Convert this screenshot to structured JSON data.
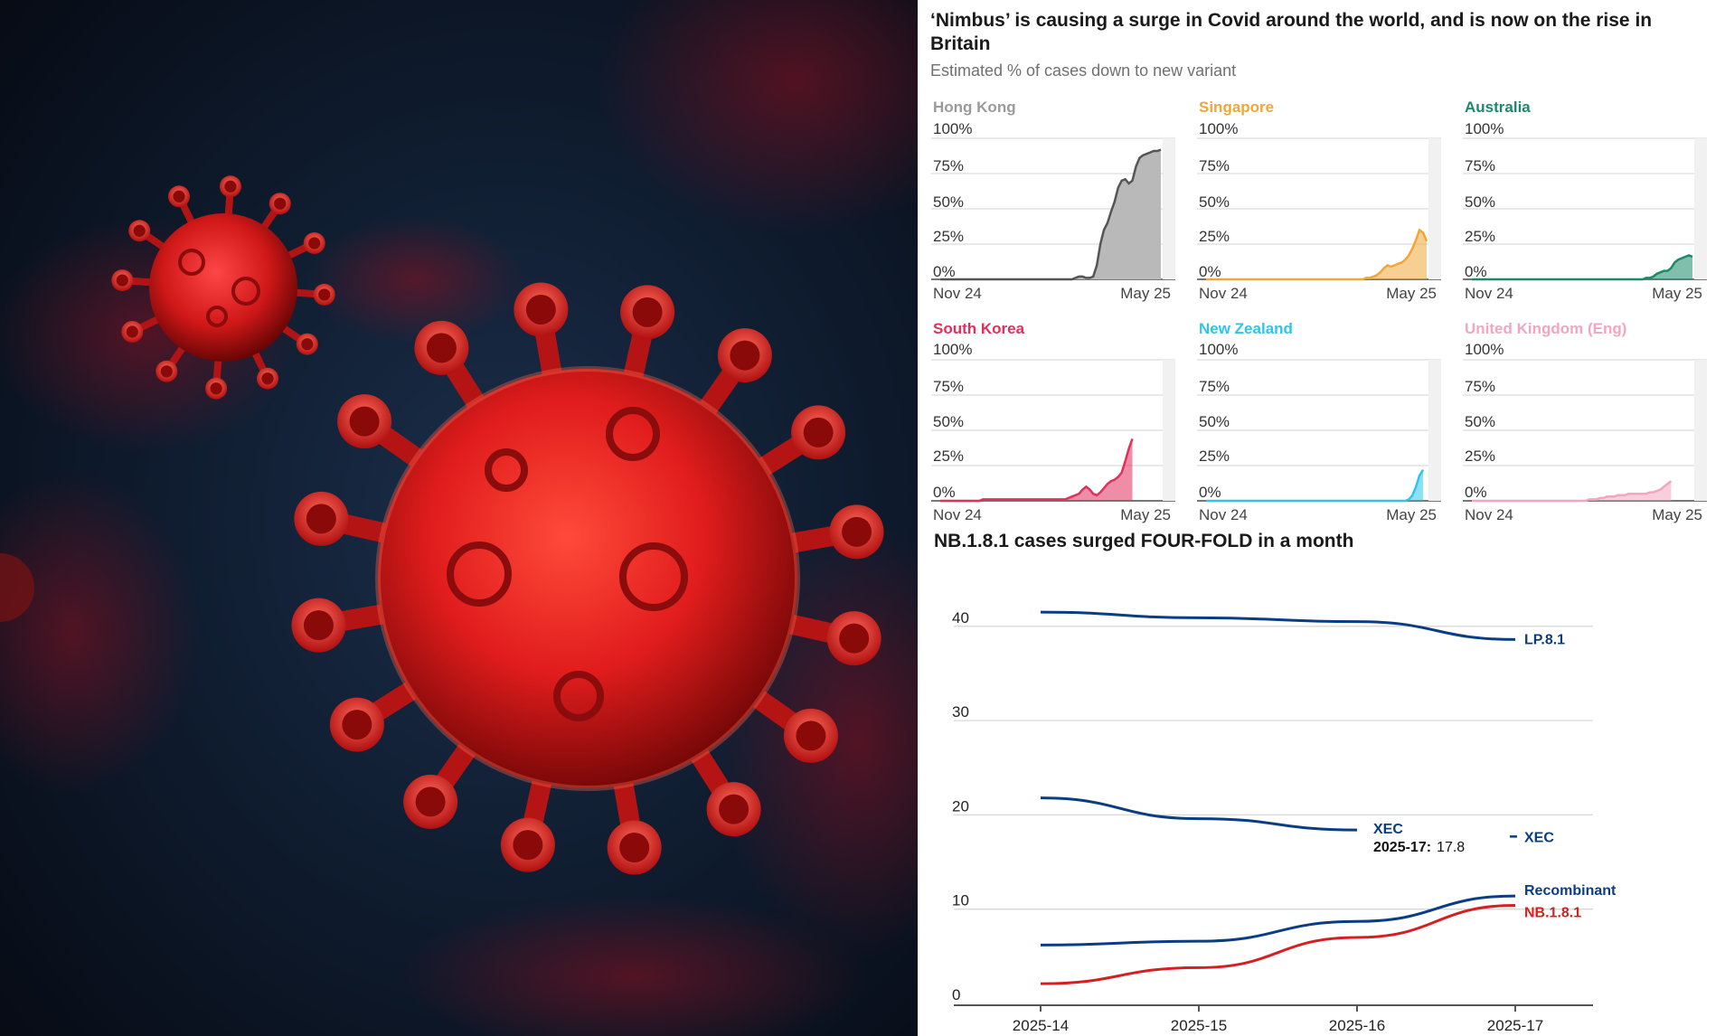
{
  "headline": "‘Nimbus’ is causing a surge in Covid around the world, and is now on the rise in Britain",
  "subtitle": "Estimated % of cases down to new variant",
  "colors": {
    "hong_kong": "#9a9a9a",
    "singapore": "#f0a73a",
    "australia": "#1a8a6a",
    "south_korea": "#e0305c",
    "new_zealand": "#30c4e8",
    "united_kingdom": "#f2a6bf",
    "lp81": "#0a3d82",
    "xec": "#0a3d82",
    "recombinant": "#0a3d82",
    "nb181": "#d42020"
  },
  "chart_data": [
    {
      "type": "area",
      "name": "Hong Kong",
      "color_key": "hong_kong",
      "x_start_label": "Nov 24",
      "x_end_label": "May 25",
      "y_ticks": [
        "100%",
        "75%",
        "50%",
        "25%",
        "0%"
      ],
      "ylim": [
        0,
        100
      ],
      "values": [
        0,
        0,
        0,
        0,
        0,
        0,
        0,
        0,
        0,
        0,
        0,
        0,
        0,
        0,
        0,
        0,
        0,
        0,
        0,
        0,
        0,
        0,
        0,
        0,
        0,
        0,
        0,
        0,
        0,
        0,
        0,
        0,
        0,
        0,
        0,
        0,
        0,
        0,
        1,
        2,
        2,
        1,
        1,
        2,
        10,
        25,
        35,
        40,
        48,
        55,
        65,
        70,
        71,
        68,
        70,
        80,
        86,
        88,
        89,
        90,
        91,
        91,
        92
      ]
    },
    {
      "type": "area",
      "name": "Singapore",
      "color_key": "singapore",
      "x_start_label": "Nov 24",
      "x_end_label": "May 25",
      "y_ticks": [
        "100%",
        "75%",
        "50%",
        "25%",
        "0%"
      ],
      "ylim": [
        0,
        100
      ],
      "values": [
        0,
        0,
        0,
        0,
        0,
        0,
        0,
        0,
        0,
        0,
        0,
        0,
        0,
        0,
        0,
        0,
        0,
        0,
        0,
        0,
        0,
        0,
        0,
        0,
        0,
        0,
        0,
        0,
        0,
        0,
        0,
        0,
        0,
        0,
        0,
        0,
        0,
        0,
        0,
        0,
        0,
        0,
        0,
        0,
        0,
        1,
        1,
        2,
        3,
        5,
        8,
        10,
        9,
        10,
        11,
        12,
        14,
        17,
        22,
        28,
        35,
        33,
        27
      ]
    },
    {
      "type": "area",
      "name": "Australia",
      "color_key": "australia",
      "x_start_label": "Nov 24",
      "x_end_label": "May 25",
      "y_ticks": [
        "100%",
        "75%",
        "50%",
        "25%",
        "0%"
      ],
      "ylim": [
        0,
        100
      ],
      "values": [
        0,
        0,
        0,
        0,
        0,
        0,
        0,
        0,
        0,
        0,
        0,
        0,
        0,
        0,
        0,
        0,
        0,
        0,
        0,
        0,
        0,
        0,
        0,
        0,
        0,
        0,
        0,
        0,
        0,
        0,
        0,
        0,
        0,
        0,
        0,
        0,
        0,
        0,
        0,
        0,
        0,
        0,
        0,
        0,
        0,
        0,
        0,
        0,
        0,
        1,
        1,
        2,
        4,
        5,
        6,
        6,
        8,
        12,
        14,
        15,
        16,
        17,
        16
      ]
    },
    {
      "type": "area",
      "name": "South Korea",
      "color_key": "south_korea",
      "x_start_label": "Nov 24",
      "x_end_label": "May 25",
      "y_ticks": [
        "100%",
        "75%",
        "50%",
        "25%",
        "0%"
      ],
      "ylim": [
        0,
        100
      ],
      "values": [
        0,
        0,
        0,
        0,
        0,
        0,
        0,
        0,
        0,
        0,
        0,
        0,
        1,
        1,
        1,
        1,
        1,
        1,
        1,
        1,
        1,
        1,
        1,
        1,
        1,
        1,
        1,
        1,
        1,
        1,
        1,
        1,
        1,
        1,
        1,
        1,
        2,
        3,
        4,
        5,
        8,
        10,
        8,
        5,
        4,
        6,
        9,
        12,
        14,
        15,
        17,
        20,
        28,
        37,
        44
      ]
    },
    {
      "type": "area",
      "name": "New Zealand",
      "color_key": "new_zealand",
      "x_start_label": "Nov 24",
      "x_end_label": "May 25",
      "y_ticks": [
        "100%",
        "75%",
        "50%",
        "25%",
        "0%"
      ],
      "ylim": [
        0,
        100
      ],
      "values": [
        0,
        0,
        0,
        0,
        0,
        0,
        0,
        0,
        0,
        0,
        0,
        0,
        0,
        0,
        0,
        0,
        0,
        0,
        0,
        0,
        0,
        0,
        0,
        0,
        0,
        0,
        0,
        0,
        0,
        0,
        0,
        0,
        0,
        0,
        0,
        0,
        0,
        0,
        0,
        0,
        0,
        0,
        0,
        0,
        0,
        0,
        0,
        0,
        0,
        0,
        0,
        0,
        0,
        0,
        0,
        0,
        0,
        1,
        4,
        10,
        18,
        22
      ]
    },
    {
      "type": "area",
      "name": "United Kingdom (Eng)",
      "color_key": "united_kingdom",
      "x_start_label": "Nov 24",
      "x_end_label": "May 25",
      "y_ticks": [
        "100%",
        "75%",
        "50%",
        "25%",
        "0%"
      ],
      "ylim": [
        0,
        100
      ],
      "values": [
        0,
        0,
        0,
        0,
        0,
        0,
        0,
        0,
        0,
        0,
        0,
        0,
        0,
        0,
        0,
        0,
        0,
        0,
        0,
        0,
        0,
        0,
        0,
        0,
        0,
        0,
        0,
        0,
        0,
        0,
        0,
        0,
        0,
        1,
        1,
        1,
        2,
        2,
        3,
        3,
        3,
        4,
        4,
        4,
        5,
        5,
        5,
        5,
        5,
        5,
        6,
        6,
        7,
        8,
        10,
        12,
        14
      ]
    },
    {
      "type": "line",
      "title": "NB.1.8.1 cases surged FOUR-FOLD in a month",
      "categories": [
        "2025-14",
        "2025-15",
        "2025-16",
        "2025-17"
      ],
      "y_ticks": [
        0,
        10,
        20,
        30,
        40
      ],
      "ylim": [
        0,
        42
      ],
      "series": [
        {
          "name": "LP.8.1",
          "color_key": "lp81",
          "values": [
            41.5,
            40.9,
            40.5,
            38.6
          ]
        },
        {
          "name": "XEC",
          "color_key": "xec",
          "values": [
            21.8,
            19.6,
            18.4,
            null
          ]
        },
        {
          "name": "Recombinant",
          "color_key": "recombinant",
          "values": [
            6.2,
            6.6,
            8.7,
            11.4
          ]
        },
        {
          "name": "NB.1.8.1",
          "color_key": "nb181",
          "values": [
            2.1,
            3.8,
            7.0,
            10.4
          ]
        }
      ],
      "annotation": {
        "label": "XEC",
        "key": "2025-17:",
        "value": "17.8"
      },
      "right_label_xec": "XEC"
    }
  ]
}
